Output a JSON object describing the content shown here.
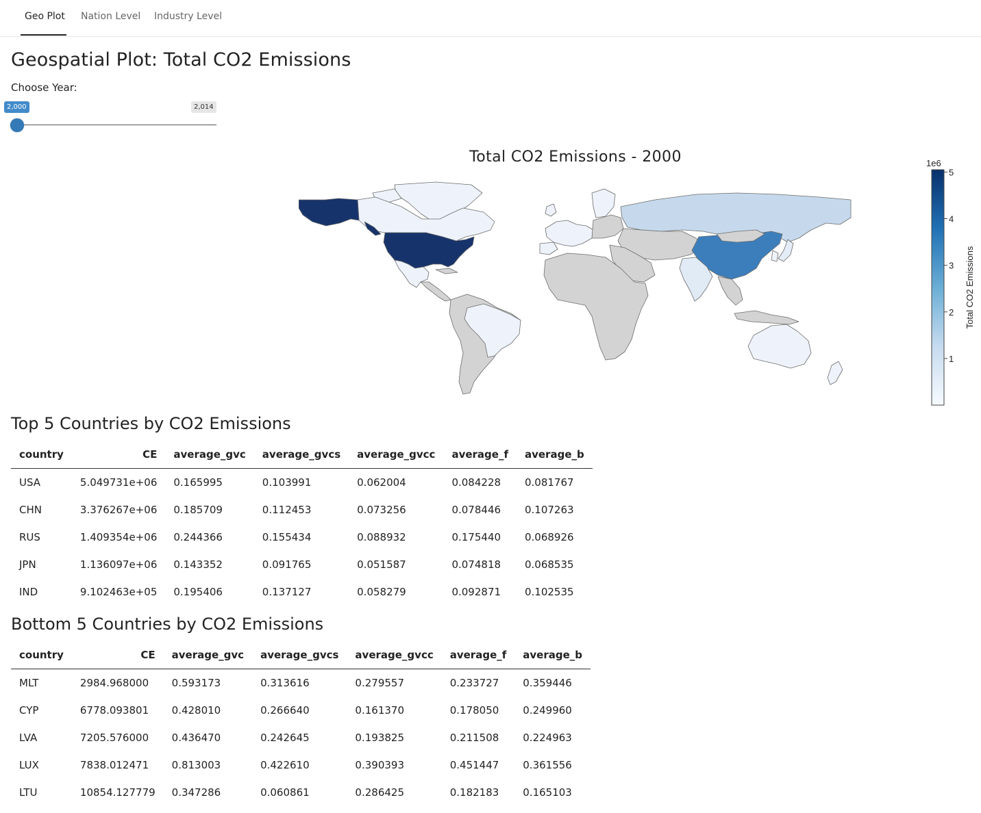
{
  "tabs": [
    {
      "label": "Geo Plot",
      "active": true
    },
    {
      "label": "Nation Level",
      "active": false
    },
    {
      "label": "Industry Level",
      "active": false
    }
  ],
  "page_title": "Geospatial Plot: Total CO2 Emissions",
  "year_control": {
    "label": "Choose Year:",
    "value_label": "2,000",
    "max_label": "2,014",
    "value": 2000,
    "min": 2000,
    "max": 2014
  },
  "map": {
    "title": "Total CO2 Emissions - 2000",
    "colorbar": {
      "title": "Total CO2 Emissions",
      "exponent_label": "1e6",
      "ticks": [
        "1",
        "2",
        "3",
        "4",
        "5"
      ],
      "tick_values": [
        1,
        2,
        3,
        4,
        5
      ],
      "min": 0,
      "max": 5.05,
      "colors": [
        "#f7fbff",
        "#c6dbef",
        "#6baed6",
        "#2171b5",
        "#08306b"
      ]
    },
    "no_data_color": "#d3d3d3",
    "highlighted_countries": {
      "USA": 5.049731,
      "CHN": 3.376267,
      "RUS": 1.409354,
      "JPN": 1.136097,
      "IND": 0.9102463
    }
  },
  "top_table": {
    "title": "Top 5 Countries by CO2 Emissions",
    "columns": [
      "country",
      "CE",
      "average_gvc",
      "average_gvcs",
      "average_gvcc",
      "average_f",
      "average_b"
    ],
    "rows": [
      [
        "USA",
        "5.049731e+06",
        "0.165995",
        "0.103991",
        "0.062004",
        "0.084228",
        "0.081767"
      ],
      [
        "CHN",
        "3.376267e+06",
        "0.185709",
        "0.112453",
        "0.073256",
        "0.078446",
        "0.107263"
      ],
      [
        "RUS",
        "1.409354e+06",
        "0.244366",
        "0.155434",
        "0.088932",
        "0.175440",
        "0.068926"
      ],
      [
        "JPN",
        "1.136097e+06",
        "0.143352",
        "0.091765",
        "0.051587",
        "0.074818",
        "0.068535"
      ],
      [
        "IND",
        "9.102463e+05",
        "0.195406",
        "0.137127",
        "0.058279",
        "0.092871",
        "0.102535"
      ]
    ]
  },
  "bottom_table": {
    "title": "Bottom 5 Countries by CO2 Emissions",
    "columns": [
      "country",
      "CE",
      "average_gvc",
      "average_gvcs",
      "average_gvcc",
      "average_f",
      "average_b"
    ],
    "rows": [
      [
        "MLT",
        "2984.968000",
        "0.593173",
        "0.313616",
        "0.279557",
        "0.233727",
        "0.359446"
      ],
      [
        "CYP",
        "6778.093801",
        "0.428010",
        "0.266640",
        "0.161370",
        "0.178050",
        "0.249960"
      ],
      [
        "LVA",
        "7205.576000",
        "0.436470",
        "0.242645",
        "0.193825",
        "0.211508",
        "0.224963"
      ],
      [
        "LUX",
        "7838.012471",
        "0.813003",
        "0.422610",
        "0.390393",
        "0.451447",
        "0.361556"
      ],
      [
        "LTU",
        "10854.127779",
        "0.347286",
        "0.060861",
        "0.286425",
        "0.182183",
        "0.165103"
      ]
    ]
  }
}
